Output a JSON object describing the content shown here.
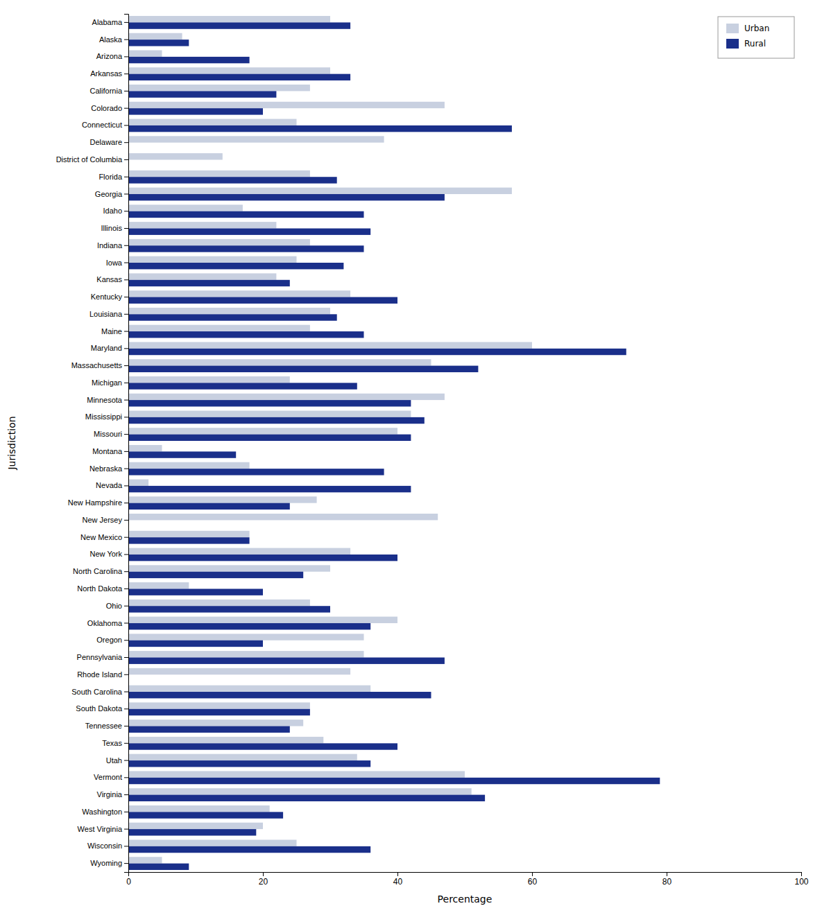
{
  "chart_data": {
    "type": "bar",
    "orientation": "horizontal",
    "categories": [
      "Alabama",
      "Alaska",
      "Arizona",
      "Arkansas",
      "California",
      "Colorado",
      "Connecticut",
      "Delaware",
      "District of Columbia",
      "Florida",
      "Georgia",
      "Idaho",
      "Illinois",
      "Indiana",
      "Iowa",
      "Kansas",
      "Kentucky",
      "Louisiana",
      "Maine",
      "Maryland",
      "Massachusetts",
      "Michigan",
      "Minnesota",
      "Mississippi",
      "Missouri",
      "Montana",
      "Nebraska",
      "Nevada",
      "New Hampshire",
      "New Jersey",
      "New Mexico",
      "New York",
      "North Carolina",
      "North Dakota",
      "Ohio",
      "Oklahoma",
      "Oregon",
      "Pennsylvania",
      "Rhode Island",
      "South Carolina",
      "South Dakota",
      "Tennessee",
      "Texas",
      "Utah",
      "Vermont",
      "Virginia",
      "Washington",
      "West Virginia",
      "Wisconsin",
      "Wyoming"
    ],
    "series": [
      {
        "name": "Urban",
        "color": "#c8d0e0",
        "values": [
          30,
          8,
          5,
          30,
          27,
          47,
          25,
          38,
          14,
          27,
          57,
          17,
          22,
          27,
          25,
          22,
          33,
          30,
          27,
          60,
          45,
          24,
          47,
          42,
          40,
          5,
          18,
          3,
          28,
          46,
          18,
          33,
          30,
          9,
          27,
          40,
          35,
          35,
          33,
          36,
          27,
          26,
          29,
          34,
          50,
          51,
          21,
          20,
          25,
          5
        ]
      },
      {
        "name": "Rural",
        "color": "#1a2f8a",
        "values": [
          33,
          9,
          18,
          33,
          22,
          20,
          57,
          0,
          0,
          31,
          47,
          35,
          36,
          35,
          32,
          24,
          40,
          31,
          35,
          74,
          52,
          34,
          42,
          44,
          42,
          16,
          38,
          42,
          24,
          0,
          18,
          40,
          26,
          20,
          30,
          36,
          20,
          47,
          0,
          45,
          27,
          24,
          40,
          36,
          79,
          53,
          23,
          19,
          36,
          9
        ]
      }
    ],
    "xlabel": "Percentage",
    "ylabel": "Jurisdiction",
    "xlim": [
      0,
      100
    ],
    "xticks": [
      0,
      20,
      40,
      60,
      80,
      100
    ],
    "grid": false,
    "legend": "upper right"
  }
}
